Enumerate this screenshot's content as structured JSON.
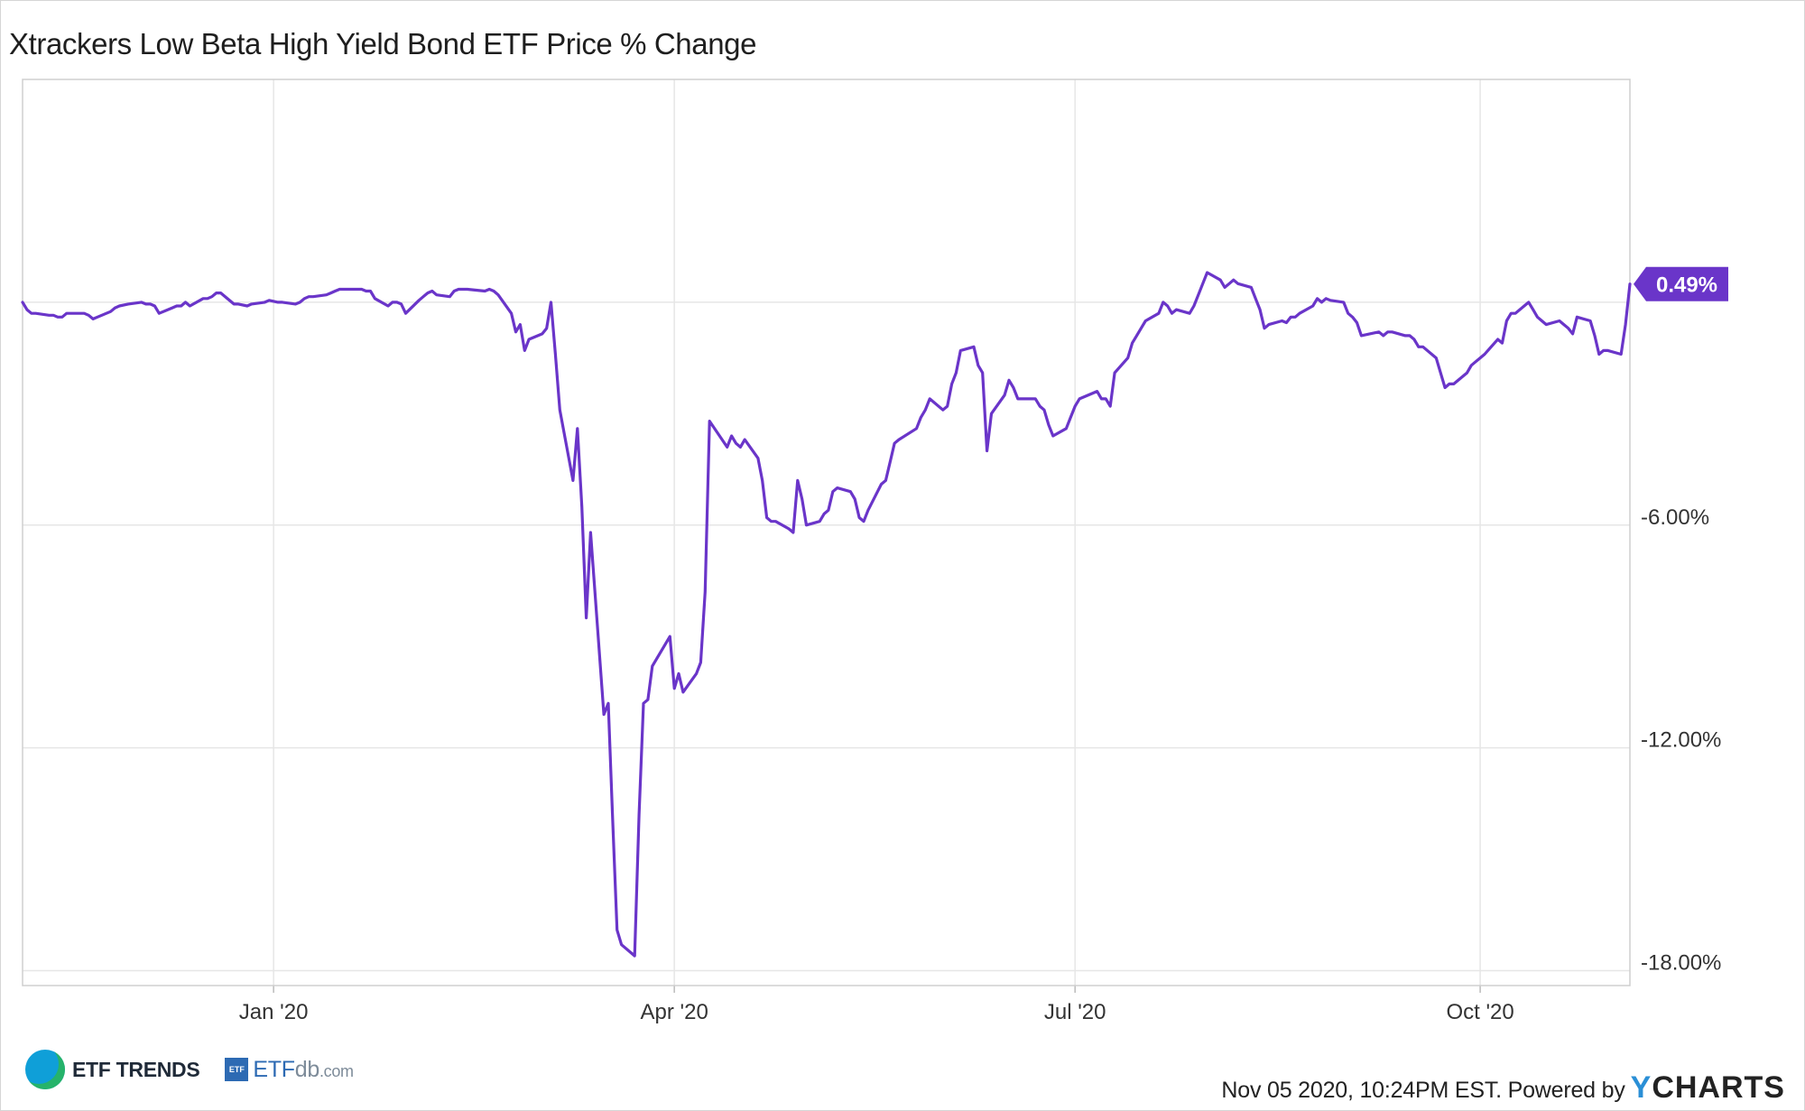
{
  "chart_data": {
    "type": "line",
    "title": "Xtrackers Low Beta High Yield Bond ETF Price % Change",
    "xlabel": "",
    "ylabel": "",
    "x_tick_labels": [
      "Jan '20",
      "Apr '20",
      "Jul '20",
      "Oct '20"
    ],
    "y_tick_labels": [
      "-6.00%",
      "-12.00%",
      "-18.00%"
    ],
    "y_ticks": [
      -6,
      -12,
      -18
    ],
    "ylim": [
      -18.4,
      6.0
    ],
    "grid": true,
    "last_value_label": "0.49%",
    "series": [
      {
        "color": "#6a35c9",
        "points": [
          [
            "2019-11-05",
            0.0
          ],
          [
            "2019-11-06",
            -0.2
          ],
          [
            "2019-11-07",
            -0.3
          ],
          [
            "2019-11-08",
            -0.3
          ],
          [
            "2019-11-11",
            -0.35
          ],
          [
            "2019-11-12",
            -0.35
          ],
          [
            "2019-11-13",
            -0.4
          ],
          [
            "2019-11-14",
            -0.4
          ],
          [
            "2019-11-15",
            -0.3
          ],
          [
            "2019-11-18",
            -0.3
          ],
          [
            "2019-11-19",
            -0.3
          ],
          [
            "2019-11-20",
            -0.35
          ],
          [
            "2019-11-21",
            -0.45
          ],
          [
            "2019-11-22",
            -0.4
          ],
          [
            "2019-11-25",
            -0.25
          ],
          [
            "2019-11-26",
            -0.15
          ],
          [
            "2019-11-27",
            -0.1
          ],
          [
            "2019-11-29",
            -0.05
          ],
          [
            "2019-12-02",
            0.0
          ],
          [
            "2019-12-03",
            -0.05
          ],
          [
            "2019-12-04",
            -0.05
          ],
          [
            "2019-12-05",
            -0.1
          ],
          [
            "2019-12-06",
            -0.3
          ],
          [
            "2019-12-09",
            -0.15
          ],
          [
            "2019-12-10",
            -0.1
          ],
          [
            "2019-12-11",
            -0.1
          ],
          [
            "2019-12-12",
            0.0
          ],
          [
            "2019-12-13",
            -0.1
          ],
          [
            "2019-12-16",
            0.1
          ],
          [
            "2019-12-17",
            0.1
          ],
          [
            "2019-12-18",
            0.15
          ],
          [
            "2019-12-19",
            0.25
          ],
          [
            "2019-12-20",
            0.25
          ],
          [
            "2019-12-23",
            -0.05
          ],
          [
            "2019-12-24",
            -0.05
          ],
          [
            "2019-12-26",
            -0.1
          ],
          [
            "2019-12-27",
            -0.05
          ],
          [
            "2019-12-30",
            0.0
          ],
          [
            "2019-12-31",
            0.05
          ],
          [
            "2020-01-02",
            0.0
          ],
          [
            "2020-01-03",
            0.0
          ],
          [
            "2020-01-06",
            -0.05
          ],
          [
            "2020-01-07",
            0.0
          ],
          [
            "2020-01-08",
            0.1
          ],
          [
            "2020-01-09",
            0.15
          ],
          [
            "2020-01-10",
            0.15
          ],
          [
            "2020-01-13",
            0.2
          ],
          [
            "2020-01-14",
            0.25
          ],
          [
            "2020-01-15",
            0.3
          ],
          [
            "2020-01-16",
            0.35
          ],
          [
            "2020-01-17",
            0.35
          ],
          [
            "2020-01-21",
            0.35
          ],
          [
            "2020-01-22",
            0.3
          ],
          [
            "2020-01-23",
            0.3
          ],
          [
            "2020-01-24",
            0.1
          ],
          [
            "2020-01-27",
            -0.1
          ],
          [
            "2020-01-28",
            0.0
          ],
          [
            "2020-01-29",
            0.0
          ],
          [
            "2020-01-30",
            -0.05
          ],
          [
            "2020-01-31",
            -0.3
          ],
          [
            "2020-02-03",
            0.05
          ],
          [
            "2020-02-04",
            0.15
          ],
          [
            "2020-02-05",
            0.25
          ],
          [
            "2020-02-06",
            0.3
          ],
          [
            "2020-02-07",
            0.2
          ],
          [
            "2020-02-10",
            0.15
          ],
          [
            "2020-02-11",
            0.3
          ],
          [
            "2020-02-12",
            0.35
          ],
          [
            "2020-02-13",
            0.35
          ],
          [
            "2020-02-14",
            0.35
          ],
          [
            "2020-02-18",
            0.3
          ],
          [
            "2020-02-19",
            0.35
          ],
          [
            "2020-02-20",
            0.3
          ],
          [
            "2020-02-21",
            0.2
          ],
          [
            "2020-02-24",
            -0.3
          ],
          [
            "2020-02-25",
            -0.8
          ],
          [
            "2020-02-26",
            -0.6
          ],
          [
            "2020-02-27",
            -1.3
          ],
          [
            "2020-02-28",
            -1.0
          ],
          [
            "2020-03-02",
            -0.85
          ],
          [
            "2020-03-03",
            -0.7
          ],
          [
            "2020-03-04",
            0.0
          ],
          [
            "2020-03-05",
            -1.4
          ],
          [
            "2020-03-06",
            -2.9
          ],
          [
            "2020-03-09",
            -4.8
          ],
          [
            "2020-03-10",
            -3.4
          ],
          [
            "2020-03-11",
            -5.5
          ],
          [
            "2020-03-12",
            -8.5
          ],
          [
            "2020-03-13",
            -6.2
          ],
          [
            "2020-03-16",
            -11.1
          ],
          [
            "2020-03-17",
            -10.8
          ],
          [
            "2020-03-18",
            -13.9
          ],
          [
            "2020-03-19",
            -16.9
          ],
          [
            "2020-03-20",
            -17.3
          ],
          [
            "2020-03-23",
            -17.6
          ],
          [
            "2020-03-24",
            -13.8
          ],
          [
            "2020-03-25",
            -10.8
          ],
          [
            "2020-03-26",
            -10.7
          ],
          [
            "2020-03-27",
            -9.8
          ],
          [
            "2020-03-30",
            -9.2
          ],
          [
            "2020-03-31",
            -9.0
          ],
          [
            "2020-04-01",
            -10.4
          ],
          [
            "2020-04-02",
            -10.0
          ],
          [
            "2020-04-03",
            -10.5
          ],
          [
            "2020-04-06",
            -10.0
          ],
          [
            "2020-04-07",
            -9.7
          ],
          [
            "2020-04-08",
            -7.8
          ],
          [
            "2020-04-09",
            -3.2
          ],
          [
            "2020-04-13",
            -3.9
          ],
          [
            "2020-04-14",
            -3.6
          ],
          [
            "2020-04-15",
            -3.8
          ],
          [
            "2020-04-16",
            -3.9
          ],
          [
            "2020-04-17",
            -3.7
          ],
          [
            "2020-04-20",
            -4.2
          ],
          [
            "2020-04-21",
            -4.8
          ],
          [
            "2020-04-22",
            -5.8
          ],
          [
            "2020-04-23",
            -5.9
          ],
          [
            "2020-04-24",
            -5.9
          ],
          [
            "2020-04-27",
            -6.1
          ],
          [
            "2020-04-28",
            -6.2
          ],
          [
            "2020-04-29",
            -4.8
          ],
          [
            "2020-04-30",
            -5.3
          ],
          [
            "2020-05-01",
            -6.0
          ],
          [
            "2020-05-04",
            -5.9
          ],
          [
            "2020-05-05",
            -5.7
          ],
          [
            "2020-05-06",
            -5.6
          ],
          [
            "2020-05-07",
            -5.1
          ],
          [
            "2020-05-08",
            -5.0
          ],
          [
            "2020-05-11",
            -5.1
          ],
          [
            "2020-05-12",
            -5.3
          ],
          [
            "2020-05-13",
            -5.8
          ],
          [
            "2020-05-14",
            -5.9
          ],
          [
            "2020-05-15",
            -5.6
          ],
          [
            "2020-05-18",
            -4.9
          ],
          [
            "2020-05-19",
            -4.8
          ],
          [
            "2020-05-20",
            -4.3
          ],
          [
            "2020-05-21",
            -3.8
          ],
          [
            "2020-05-22",
            -3.7
          ],
          [
            "2020-05-26",
            -3.4
          ],
          [
            "2020-05-27",
            -3.1
          ],
          [
            "2020-05-28",
            -2.9
          ],
          [
            "2020-05-29",
            -2.6
          ],
          [
            "2020-06-01",
            -2.9
          ],
          [
            "2020-06-02",
            -2.8
          ],
          [
            "2020-06-03",
            -2.2
          ],
          [
            "2020-06-04",
            -1.9
          ],
          [
            "2020-06-05",
            -1.3
          ],
          [
            "2020-06-08",
            -1.2
          ],
          [
            "2020-06-09",
            -1.7
          ],
          [
            "2020-06-10",
            -1.9
          ],
          [
            "2020-06-11",
            -4.0
          ],
          [
            "2020-06-12",
            -3.0
          ],
          [
            "2020-06-15",
            -2.5
          ],
          [
            "2020-06-16",
            -2.1
          ],
          [
            "2020-06-17",
            -2.3
          ],
          [
            "2020-06-18",
            -2.6
          ],
          [
            "2020-06-19",
            -2.6
          ],
          [
            "2020-06-22",
            -2.6
          ],
          [
            "2020-06-23",
            -2.8
          ],
          [
            "2020-06-24",
            -2.9
          ],
          [
            "2020-06-25",
            -3.3
          ],
          [
            "2020-06-26",
            -3.6
          ],
          [
            "2020-06-29",
            -3.4
          ],
          [
            "2020-06-30",
            -3.1
          ],
          [
            "2020-07-01",
            -2.8
          ],
          [
            "2020-07-02",
            -2.6
          ],
          [
            "2020-07-06",
            -2.4
          ],
          [
            "2020-07-07",
            -2.6
          ],
          [
            "2020-07-08",
            -2.6
          ],
          [
            "2020-07-09",
            -2.8
          ],
          [
            "2020-07-10",
            -1.9
          ],
          [
            "2020-07-13",
            -1.5
          ],
          [
            "2020-07-14",
            -1.1
          ],
          [
            "2020-07-15",
            -0.9
          ],
          [
            "2020-07-16",
            -0.7
          ],
          [
            "2020-07-17",
            -0.5
          ],
          [
            "2020-07-20",
            -0.3
          ],
          [
            "2020-07-21",
            0.0
          ],
          [
            "2020-07-22",
            -0.1
          ],
          [
            "2020-07-23",
            -0.3
          ],
          [
            "2020-07-24",
            -0.2
          ],
          [
            "2020-07-27",
            -0.3
          ],
          [
            "2020-07-28",
            -0.1
          ],
          [
            "2020-07-29",
            0.2
          ],
          [
            "2020-07-30",
            0.5
          ],
          [
            "2020-07-31",
            0.8
          ],
          [
            "2020-08-03",
            0.6
          ],
          [
            "2020-08-04",
            0.4
          ],
          [
            "2020-08-05",
            0.5
          ],
          [
            "2020-08-06",
            0.6
          ],
          [
            "2020-08-07",
            0.5
          ],
          [
            "2020-08-10",
            0.4
          ],
          [
            "2020-08-11",
            0.1
          ],
          [
            "2020-08-12",
            -0.2
          ],
          [
            "2020-08-13",
            -0.7
          ],
          [
            "2020-08-14",
            -0.6
          ],
          [
            "2020-08-17",
            -0.5
          ],
          [
            "2020-08-18",
            -0.55
          ],
          [
            "2020-08-19",
            -0.4
          ],
          [
            "2020-08-20",
            -0.4
          ],
          [
            "2020-08-21",
            -0.3
          ],
          [
            "2020-08-24",
            -0.1
          ],
          [
            "2020-08-25",
            0.1
          ],
          [
            "2020-08-26",
            0.0
          ],
          [
            "2020-08-27",
            0.1
          ],
          [
            "2020-08-28",
            0.05
          ],
          [
            "2020-08-31",
            0.0
          ],
          [
            "2020-09-01",
            -0.3
          ],
          [
            "2020-09-02",
            -0.4
          ],
          [
            "2020-09-03",
            -0.55
          ],
          [
            "2020-09-04",
            -0.9
          ],
          [
            "2020-09-08",
            -0.8
          ],
          [
            "2020-09-09",
            -0.9
          ],
          [
            "2020-09-10",
            -0.8
          ],
          [
            "2020-09-11",
            -0.8
          ],
          [
            "2020-09-14",
            -0.9
          ],
          [
            "2020-09-15",
            -0.9
          ],
          [
            "2020-09-16",
            -1.0
          ],
          [
            "2020-09-17",
            -1.2
          ],
          [
            "2020-09-18",
            -1.2
          ],
          [
            "2020-09-21",
            -1.5
          ],
          [
            "2020-09-22",
            -1.9
          ],
          [
            "2020-09-23",
            -2.3
          ],
          [
            "2020-09-24",
            -2.2
          ],
          [
            "2020-09-25",
            -2.2
          ],
          [
            "2020-09-28",
            -1.9
          ],
          [
            "2020-09-29",
            -1.7
          ],
          [
            "2020-09-30",
            -1.6
          ],
          [
            "2020-10-01",
            -1.5
          ],
          [
            "2020-10-02",
            -1.4
          ],
          [
            "2020-10-05",
            -1.0
          ],
          [
            "2020-10-06",
            -1.1
          ],
          [
            "2020-10-07",
            -0.5
          ],
          [
            "2020-10-08",
            -0.3
          ],
          [
            "2020-10-09",
            -0.3
          ],
          [
            "2020-10-12",
            0.0
          ],
          [
            "2020-10-13",
            -0.2
          ],
          [
            "2020-10-14",
            -0.4
          ],
          [
            "2020-10-15",
            -0.5
          ],
          [
            "2020-10-16",
            -0.6
          ],
          [
            "2020-10-19",
            -0.5
          ],
          [
            "2020-10-20",
            -0.6
          ],
          [
            "2020-10-21",
            -0.7
          ],
          [
            "2020-10-22",
            -0.85
          ],
          [
            "2020-10-23",
            -0.4
          ],
          [
            "2020-10-26",
            -0.5
          ],
          [
            "2020-10-27",
            -0.9
          ],
          [
            "2020-10-28",
            -1.4
          ],
          [
            "2020-10-29",
            -1.3
          ],
          [
            "2020-10-30",
            -1.3
          ],
          [
            "2020-11-02",
            -1.4
          ],
          [
            "2020-11-03",
            -0.6
          ],
          [
            "2020-11-04",
            0.49
          ]
        ]
      }
    ]
  },
  "footer": {
    "left_logo_1": "ETF TRENDS",
    "left_logo_2_box": "ETF",
    "left_logo_2_main": "ETF",
    "left_logo_2_db": "db",
    "left_logo_2_com": ".com",
    "timestamp": "Nov 05 2020, 10:24PM EST. Powered by",
    "ycharts_y": "Y",
    "ycharts_rest": "CHARTS"
  }
}
